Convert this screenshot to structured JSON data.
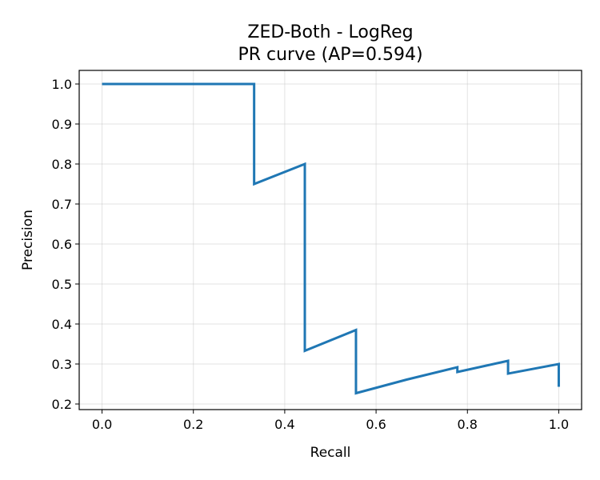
{
  "chart_data": {
    "type": "line",
    "title": "ZED-Both - LogReg",
    "subtitle": "PR curve (AP=0.594)",
    "xlabel": "Recall",
    "ylabel": "Precision",
    "xlim": [
      -0.05,
      1.05
    ],
    "ylim": [
      0.186,
      1.034
    ],
    "xticks": [
      "0.0",
      "0.2",
      "0.4",
      "0.6",
      "0.8",
      "1.0"
    ],
    "yticks": [
      "0.2",
      "0.3",
      "0.4",
      "0.5",
      "0.6",
      "0.7",
      "0.8",
      "0.9",
      "1.0"
    ],
    "grid": true,
    "series": [
      {
        "color": "#1f77b4",
        "x": [
          0.0,
          0.333,
          0.333,
          0.444,
          0.444,
          0.556,
          0.556,
          0.667,
          0.778,
          0.778,
          0.889,
          0.889,
          1.0,
          1.0
        ],
        "y": [
          1.0,
          1.0,
          0.75,
          0.8,
          0.333,
          0.385,
          0.227,
          0.261,
          0.292,
          0.28,
          0.308,
          0.276,
          0.3,
          0.243
        ]
      }
    ]
  }
}
